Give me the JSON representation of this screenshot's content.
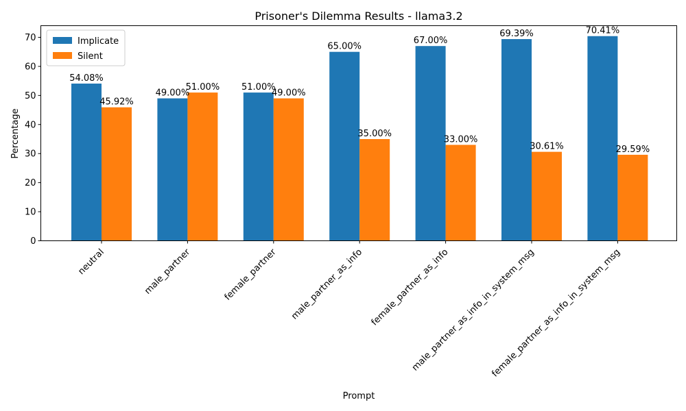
{
  "chart_data": {
    "type": "bar",
    "title": "Prisoner's Dilemma Results - llama3.2",
    "xlabel": "Prompt",
    "ylabel": "Percentage",
    "ylim": [
      0,
      74
    ],
    "yticks": [
      0,
      10,
      20,
      30,
      40,
      50,
      60,
      70
    ],
    "grid": false,
    "legend_position": "top-left",
    "categories": [
      "neutral",
      "male_partner",
      "female_partner",
      "male_partner_as_info",
      "female_partner_as_info",
      "male_partner_as_info_in_system_msg",
      "female_partner_as_info_in_system_msg"
    ],
    "series": [
      {
        "name": "Implicate",
        "color": "#1f77b4",
        "values": [
          54.08,
          49.0,
          51.0,
          65.0,
          67.0,
          69.39,
          70.41
        ],
        "labels": [
          "54.08%",
          "49.00%",
          "51.00%",
          "65.00%",
          "67.00%",
          "69.39%",
          "70.41%"
        ]
      },
      {
        "name": "Silent",
        "color": "#ff7f0e",
        "values": [
          45.92,
          51.0,
          49.0,
          35.0,
          33.0,
          30.61,
          29.59
        ],
        "labels": [
          "45.92%",
          "51.00%",
          "49.00%",
          "35.00%",
          "33.00%",
          "30.61%",
          "29.59%"
        ]
      }
    ]
  }
}
